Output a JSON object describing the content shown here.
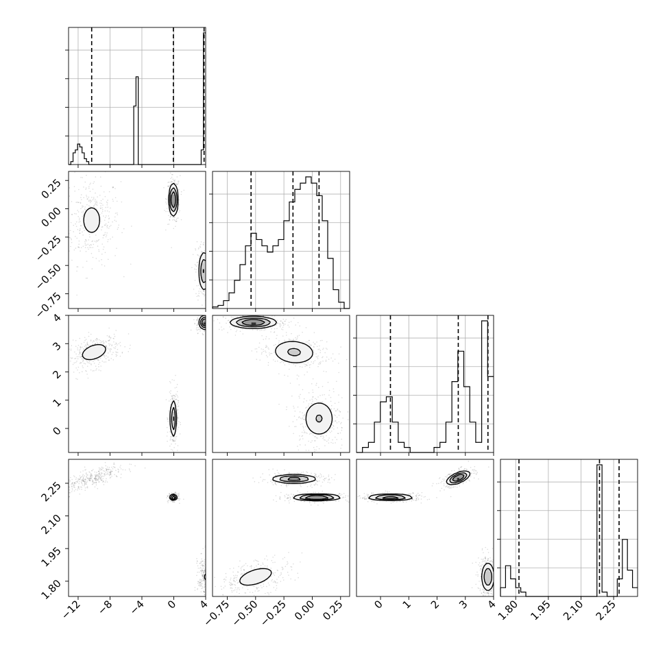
{
  "chart_data": {
    "type": "corner",
    "title": "",
    "n_params": 4,
    "axes": [
      {
        "range": [
          -13.2,
          4.0
        ],
        "ticks": [
          -12,
          -8,
          -4,
          0,
          4
        ],
        "tick_labels": [
          "−12",
          "−8",
          "−4",
          "0",
          "4"
        ]
      },
      {
        "range": [
          -0.88,
          0.33
        ],
        "ticks": [
          -0.75,
          -0.5,
          -0.25,
          0.0,
          0.25
        ],
        "tick_labels": [
          "−0.75",
          "−0.50",
          "−0.25",
          "0.00",
          "0.25"
        ]
      },
      {
        "range": [
          -0.85,
          4.0
        ],
        "ticks": [
          0,
          1,
          2,
          3,
          4
        ],
        "tick_labels": [
          "0",
          "1",
          "2",
          "3",
          "4"
        ]
      },
      {
        "range": [
          1.73,
          2.36
        ],
        "ticks": [
          1.8,
          1.95,
          2.1,
          2.25
        ],
        "tick_labels": [
          "1.80",
          "1.95",
          "2.10",
          "2.25"
        ]
      }
    ],
    "quantiles": [
      [
        -10.3,
        -0.05,
        3.8
      ],
      [
        -0.54,
        -0.17,
        0.06
      ],
      [
        0.35,
        2.75,
        3.8
      ],
      [
        1.815,
        2.185,
        2.275
      ]
    ],
    "histograms": [
      {
        "edges_start": -13.2,
        "edges_end": 4.0,
        "counts": [
          0,
          1,
          4,
          5,
          7,
          6,
          4,
          2,
          1,
          0,
          0,
          0,
          0,
          0,
          0,
          0,
          0,
          0,
          0,
          0,
          0,
          0,
          0,
          0,
          0,
          0,
          0,
          0,
          0,
          20,
          30,
          0,
          0,
          0,
          0,
          0,
          0,
          0,
          0,
          0,
          0,
          0,
          0,
          0,
          0,
          0,
          0,
          0,
          0,
          0,
          0,
          0,
          0,
          0,
          0,
          0,
          0,
          0,
          0,
          5,
          45
        ]
      },
      {
        "edges_start": -0.88,
        "edges_end": 0.33,
        "counts": [
          0.5,
          1,
          2.5,
          5,
          9,
          14,
          20,
          24,
          22,
          20,
          18,
          20,
          22,
          28,
          34,
          38,
          40,
          42,
          40,
          36,
          28,
          16,
          6,
          2,
          0
        ]
      },
      {
        "edges_start": -0.85,
        "edges_end": 4.0,
        "counts": [
          0,
          1,
          2,
          6,
          10,
          11,
          6,
          2,
          1,
          0,
          0,
          0,
          0,
          1,
          2,
          6,
          14,
          20,
          13,
          6,
          2,
          26,
          15
        ]
      },
      {
        "edges_start": 1.73,
        "edges_end": 2.36,
        "counts": [
          2,
          7,
          4,
          2,
          1,
          0,
          0,
          0,
          0,
          0,
          0,
          0,
          0,
          0,
          0,
          0,
          0,
          0,
          0,
          30,
          1,
          0,
          0,
          4,
          13,
          6,
          2
        ]
      }
    ],
    "modes": [
      [
        {
          "p": [
            0,
            1
          ],
          "mean": [
            -10.3,
            -0.1
          ],
          "sd": [
            1.2,
            0.13
          ],
          "rho": 0.0,
          "w": 0.4
        },
        {
          "p": [
            0,
            1
          ],
          "mean": [
            -0.05,
            0.08
          ],
          "sd": [
            0.28,
            0.07
          ],
          "rho": 0.0,
          "w": 0.3
        },
        {
          "p": [
            0,
            1
          ],
          "mean": [
            3.8,
            -0.55
          ],
          "sd": [
            0.35,
            0.09
          ],
          "rho": 0.0,
          "w": 0.3
        }
      ],
      [
        {
          "p": [
            0,
            2
          ],
          "mean": [
            -10.0,
            2.7
          ],
          "sd": [
            1.1,
            0.2
          ],
          "rho": 0.4,
          "w": 0.4
        },
        {
          "p": [
            0,
            2
          ],
          "mean": [
            -0.05,
            0.35
          ],
          "sd": [
            0.2,
            0.35
          ],
          "rho": 0.0,
          "w": 0.3
        },
        {
          "p": [
            0,
            2
          ],
          "mean": [
            3.9,
            3.75
          ],
          "sd": [
            0.35,
            0.12
          ],
          "rho": 0.0,
          "w": 0.3
        }
      ],
      [
        {
          "p": [
            1,
            2
          ],
          "mean": [
            -0.52,
            3.75
          ],
          "sd": [
            0.1,
            0.1
          ],
          "rho": 0.0,
          "w": 0.33
        },
        {
          "p": [
            1,
            2
          ],
          "mean": [
            -0.16,
            2.7
          ],
          "sd": [
            0.11,
            0.25
          ],
          "rho": -0.1,
          "w": 0.33
        },
        {
          "p": [
            1,
            2
          ],
          "mean": [
            0.06,
            0.35
          ],
          "sd": [
            0.08,
            0.38
          ],
          "rho": 0.0,
          "w": 0.34
        }
      ],
      [
        {
          "p": [
            0,
            3
          ],
          "mean": [
            -10.3,
            2.27
          ],
          "sd": [
            1.4,
            0.022
          ],
          "rho": 0.8,
          "w": 0.4
        },
        {
          "p": [
            0,
            3
          ],
          "mean": [
            -0.05,
            2.185
          ],
          "sd": [
            0.2,
            0.006
          ],
          "rho": 0.0,
          "w": 0.3
        },
        {
          "p": [
            0,
            3
          ],
          "mean": [
            3.9,
            1.82
          ],
          "sd": [
            0.3,
            0.035
          ],
          "rho": 0.0,
          "w": 0.3
        }
      ],
      [
        {
          "p": [
            1,
            3
          ],
          "mean": [
            -0.5,
            1.82
          ],
          "sd": [
            0.11,
            0.03
          ],
          "rho": 0.5,
          "w": 0.33
        },
        {
          "p": [
            1,
            3
          ],
          "mean": [
            -0.16,
            2.27
          ],
          "sd": [
            0.1,
            0.01
          ],
          "rho": 0.0,
          "w": 0.33
        },
        {
          "p": [
            1,
            3
          ],
          "mean": [
            0.04,
            2.185
          ],
          "sd": [
            0.1,
            0.007
          ],
          "rho": 0.0,
          "w": 0.34
        }
      ],
      [
        {
          "p": [
            2,
            3
          ],
          "mean": [
            0.35,
            2.185
          ],
          "sd": [
            0.4,
            0.007
          ],
          "rho": 0.0,
          "w": 0.33
        },
        {
          "p": [
            2,
            3
          ],
          "mean": [
            2.75,
            2.275
          ],
          "sd": [
            0.2,
            0.015
          ],
          "rho": 0.6,
          "w": 0.33
        },
        {
          "p": [
            2,
            3
          ],
          "mean": [
            3.8,
            1.82
          ],
          "sd": [
            0.12,
            0.035
          ],
          "rho": 0.0,
          "w": 0.34
        }
      ]
    ],
    "grid": true,
    "colors": {
      "line": "#000000",
      "grid": "#b0b0b0",
      "contour_fill": [
        "#f2f2f2",
        "#cccccc",
        "#9a9a9a",
        "#333333"
      ],
      "scatter": "#000000"
    }
  }
}
